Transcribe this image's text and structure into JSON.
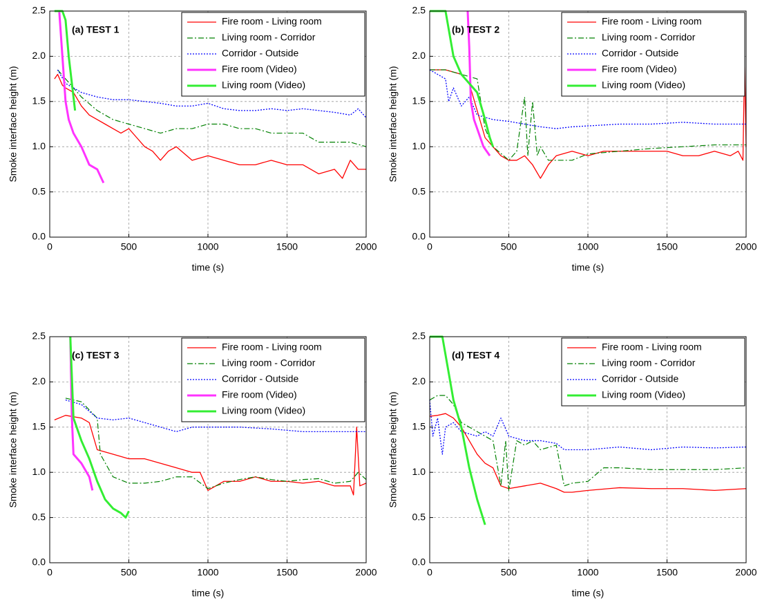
{
  "chart_data": [
    {
      "type": "line",
      "title": "(a) TEST 1",
      "xlabel": "time (s)",
      "ylabel": "Smoke interface height (m)",
      "xlim": [
        0,
        2000
      ],
      "ylim": [
        0,
        2.5
      ],
      "xticks": [
        0,
        500,
        1000,
        1500,
        2000
      ],
      "yticks": [
        {
          "value": 0,
          "label": "0.0"
        },
        0.5,
        {
          "value": 1,
          "label": "1.0"
        },
        1.5,
        {
          "value": 2,
          "label": "2.0"
        },
        2.5
      ],
      "grid": true,
      "legend": "upper right",
      "series": [
        {
          "name": "Fire room - Living room",
          "color": "#ff0000",
          "style": "solid",
          "width": 1.3,
          "x": [
            30,
            50,
            80,
            100,
            150,
            200,
            250,
            300,
            350,
            400,
            450,
            500,
            550,
            600,
            650,
            700,
            750,
            800,
            900,
            1000,
            1100,
            1200,
            1300,
            1400,
            1500,
            1600,
            1700,
            1800,
            1850,
            1900,
            1950,
            2000
          ],
          "values": [
            1.75,
            1.8,
            1.68,
            1.65,
            1.6,
            1.45,
            1.35,
            1.3,
            1.25,
            1.2,
            1.15,
            1.2,
            1.1,
            1.0,
            0.95,
            0.85,
            0.95,
            1.0,
            0.85,
            0.9,
            0.85,
            0.8,
            0.8,
            0.85,
            0.8,
            0.8,
            0.7,
            0.75,
            0.65,
            0.85,
            0.75,
            0.75
          ]
        },
        {
          "name": "Living room - Corridor",
          "color": "#008000",
          "style": "dashdot",
          "width": 1.2,
          "x": [
            50,
            100,
            150,
            200,
            300,
            400,
            500,
            600,
            700,
            800,
            900,
            1000,
            1100,
            1200,
            1300,
            1400,
            1500,
            1600,
            1700,
            1800,
            1900,
            2000
          ],
          "values": [
            1.85,
            1.75,
            1.65,
            1.55,
            1.4,
            1.3,
            1.25,
            1.2,
            1.15,
            1.2,
            1.2,
            1.25,
            1.25,
            1.2,
            1.2,
            1.15,
            1.15,
            1.15,
            1.05,
            1.05,
            1.05,
            1.0
          ]
        },
        {
          "name": "Corridor - Outside",
          "color": "#0000ff",
          "style": "dotted",
          "width": 1.3,
          "x": [
            50,
            100,
            200,
            300,
            400,
            500,
            600,
            700,
            800,
            900,
            1000,
            1100,
            1200,
            1300,
            1400,
            1500,
            1600,
            1700,
            1800,
            1900,
            1950,
            2000
          ],
          "values": [
            1.85,
            1.7,
            1.6,
            1.55,
            1.52,
            1.52,
            1.5,
            1.48,
            1.45,
            1.45,
            1.48,
            1.42,
            1.4,
            1.4,
            1.42,
            1.4,
            1.42,
            1.4,
            1.38,
            1.35,
            1.42,
            1.32
          ]
        },
        {
          "name": "Fire room (Video)",
          "color": "#ff33ff",
          "style": "solid",
          "width": 3,
          "x": [
            60,
            80,
            100,
            120,
            150,
            200,
            250,
            300,
            340
          ],
          "values": [
            2.5,
            2.0,
            1.5,
            1.3,
            1.15,
            1.0,
            0.8,
            0.75,
            0.6
          ]
        },
        {
          "name": "Living room (Video)",
          "color": "#33ee33",
          "style": "solid",
          "width": 3,
          "x": [
            30,
            80,
            100,
            120,
            140,
            160
          ],
          "values": [
            2.5,
            2.5,
            2.4,
            2.0,
            1.7,
            1.4
          ]
        }
      ]
    },
    {
      "type": "line",
      "title": "(b) TEST 2",
      "xlabel": "time (s)",
      "ylabel": "Smoke interface height (m)",
      "xlim": [
        0,
        2000
      ],
      "ylim": [
        0,
        2.5
      ],
      "xticks": [
        0,
        500,
        1000,
        1500,
        2000
      ],
      "yticks": [
        {
          "value": 0,
          "label": "0.0"
        },
        0.5,
        {
          "value": 1,
          "label": "1.0"
        },
        1.5,
        {
          "value": 2,
          "label": "2.0"
        },
        2.5
      ],
      "grid": true,
      "legend": "upper right",
      "series": [
        {
          "name": "Fire room - Living room",
          "color": "#ff0000",
          "style": "solid",
          "width": 1.3,
          "x": [
            0,
            100,
            200,
            250,
            300,
            350,
            400,
            450,
            500,
            550,
            600,
            650,
            700,
            750,
            800,
            900,
            1000,
            1100,
            1200,
            1300,
            1400,
            1500,
            1600,
            1700,
            1800,
            1900,
            1950,
            1980,
            1990,
            2000
          ],
          "values": [
            1.85,
            1.85,
            1.8,
            1.7,
            1.4,
            1.1,
            1.0,
            0.9,
            0.85,
            0.85,
            0.9,
            0.8,
            0.65,
            0.8,
            0.9,
            0.95,
            0.9,
            0.95,
            0.95,
            0.95,
            0.95,
            0.95,
            0.9,
            0.9,
            0.95,
            0.9,
            0.95,
            0.85,
            1.95,
            1.0
          ]
        },
        {
          "name": "Living room - Corridor",
          "color": "#008000",
          "style": "dashdot",
          "width": 1.2,
          "x": [
            0,
            100,
            200,
            300,
            350,
            400,
            500,
            550,
            600,
            620,
            650,
            680,
            700,
            750,
            800,
            900,
            1000,
            1200,
            1400,
            1600,
            1800,
            2000
          ],
          "values": [
            1.85,
            1.85,
            1.8,
            1.75,
            1.2,
            1.0,
            0.85,
            0.95,
            1.55,
            0.9,
            1.5,
            0.9,
            1.0,
            0.85,
            0.85,
            0.85,
            0.92,
            0.95,
            0.98,
            1.0,
            1.02,
            1.02
          ]
        },
        {
          "name": "Corridor - Outside",
          "color": "#0000ff",
          "style": "dotted",
          "width": 1.3,
          "x": [
            0,
            100,
            120,
            150,
            200,
            250,
            300,
            400,
            500,
            600,
            700,
            800,
            900,
            1000,
            1200,
            1400,
            1600,
            1800,
            2000
          ],
          "values": [
            1.85,
            1.75,
            1.5,
            1.65,
            1.45,
            1.55,
            1.35,
            1.3,
            1.28,
            1.25,
            1.22,
            1.2,
            1.22,
            1.23,
            1.25,
            1.25,
            1.27,
            1.25,
            1.25
          ]
        },
        {
          "name": "Fire room (Video)",
          "color": "#ff33ff",
          "style": "solid",
          "width": 3,
          "x": [
            240,
            250,
            260,
            280,
            300,
            320,
            340,
            360,
            380
          ],
          "values": [
            2.5,
            2.1,
            1.5,
            1.3,
            1.2,
            1.1,
            1.0,
            0.95,
            0.9
          ]
        },
        {
          "name": "Living room (Video)",
          "color": "#33ee33",
          "style": "solid",
          "width": 3,
          "x": [
            0,
            100,
            120,
            150,
            200,
            250,
            300,
            350,
            380,
            400
          ],
          "values": [
            2.5,
            2.5,
            2.3,
            2.0,
            1.8,
            1.7,
            1.6,
            1.3,
            1.1,
            1.0
          ]
        }
      ]
    },
    {
      "type": "line",
      "title": "(c) TEST 3",
      "xlabel": "time (s)",
      "ylabel": "Smoke interface height (m)",
      "xlim": [
        0,
        2000
      ],
      "ylim": [
        0,
        2.5
      ],
      "xticks": [
        0,
        500,
        1000,
        1500,
        2000
      ],
      "yticks": [
        {
          "value": 0,
          "label": "0.0"
        },
        0.5,
        {
          "value": 1,
          "label": "1.0"
        },
        1.5,
        {
          "value": 2,
          "label": "2.0"
        },
        2.5
      ],
      "grid": true,
      "legend": "upper right",
      "series": [
        {
          "name": "Fire room - Living room",
          "color": "#ff0000",
          "style": "solid",
          "width": 1.3,
          "x": [
            30,
            100,
            200,
            250,
            300,
            400,
            500,
            600,
            700,
            800,
            900,
            950,
            1000,
            1100,
            1200,
            1300,
            1400,
            1500,
            1600,
            1700,
            1800,
            1900,
            1920,
            1940,
            1960,
            2000
          ],
          "values": [
            1.58,
            1.63,
            1.6,
            1.55,
            1.25,
            1.2,
            1.15,
            1.15,
            1.1,
            1.05,
            1.0,
            1.0,
            0.8,
            0.9,
            0.9,
            0.95,
            0.9,
            0.9,
            0.88,
            0.9,
            0.85,
            0.85,
            0.75,
            1.5,
            0.85,
            0.88
          ]
        },
        {
          "name": "Living room - Corridor",
          "color": "#008000",
          "style": "dashdot",
          "width": 1.2,
          "x": [
            100,
            200,
            300,
            320,
            400,
            500,
            600,
            700,
            800,
            900,
            1000,
            1100,
            1200,
            1300,
            1400,
            1500,
            1600,
            1700,
            1800,
            1900,
            1950,
            2000
          ],
          "values": [
            1.82,
            1.78,
            1.6,
            1.2,
            0.95,
            0.88,
            0.88,
            0.9,
            0.95,
            0.95,
            0.82,
            0.88,
            0.92,
            0.95,
            0.92,
            0.9,
            0.92,
            0.93,
            0.88,
            0.9,
            1.0,
            0.92
          ]
        },
        {
          "name": "Corridor - Outside",
          "color": "#0000ff",
          "style": "dotted",
          "width": 1.3,
          "x": [
            100,
            200,
            300,
            400,
            500,
            600,
            700,
            800,
            900,
            1000,
            1200,
            1400,
            1600,
            1800,
            2000
          ],
          "values": [
            1.8,
            1.75,
            1.6,
            1.58,
            1.6,
            1.55,
            1.5,
            1.45,
            1.5,
            1.5,
            1.5,
            1.48,
            1.45,
            1.45,
            1.45
          ]
        },
        {
          "name": "Fire room (Video)",
          "color": "#ff33ff",
          "style": "solid",
          "width": 3,
          "x": [
            130,
            140,
            150,
            200,
            250,
            270
          ],
          "values": [
            2.5,
            1.6,
            1.2,
            1.1,
            0.95,
            0.8
          ]
        },
        {
          "name": "Living room (Video)",
          "color": "#33ee33",
          "style": "solid",
          "width": 3,
          "x": [
            130,
            150,
            200,
            250,
            300,
            350,
            400,
            450,
            480,
            500
          ],
          "values": [
            2.5,
            1.6,
            1.35,
            1.15,
            0.9,
            0.7,
            0.6,
            0.55,
            0.5,
            0.57
          ]
        }
      ]
    },
    {
      "type": "line",
      "title": "(d) TEST 4",
      "xlabel": "time (s)",
      "ylabel": "Smoke interface height (m)",
      "xlim": [
        0,
        2000
      ],
      "ylim": [
        0,
        2.5
      ],
      "xticks": [
        0,
        500,
        1000,
        1500,
        2000
      ],
      "yticks": [
        {
          "value": 0,
          "label": "0.0"
        },
        0.5,
        {
          "value": 1,
          "label": "1.0"
        },
        1.5,
        {
          "value": 2,
          "label": "2.0"
        },
        2.5
      ],
      "grid": true,
      "legend": "upper right",
      "series": [
        {
          "name": "Fire room - Living room",
          "color": "#ff0000",
          "style": "solid",
          "width": 1.3,
          "x": [
            0,
            50,
            100,
            150,
            200,
            250,
            300,
            350,
            400,
            450,
            500,
            600,
            700,
            800,
            850,
            900,
            1000,
            1200,
            1400,
            1600,
            1800,
            2000
          ],
          "values": [
            1.62,
            1.63,
            1.65,
            1.6,
            1.5,
            1.35,
            1.2,
            1.1,
            1.05,
            0.85,
            0.82,
            0.85,
            0.88,
            0.82,
            0.78,
            0.78,
            0.8,
            0.83,
            0.82,
            0.82,
            0.8,
            0.82
          ]
        },
        {
          "name": "Living room - Corridor",
          "color": "#008000",
          "style": "dashdot",
          "width": 1.2,
          "x": [
            0,
            50,
            100,
            150,
            200,
            300,
            400,
            450,
            480,
            500,
            550,
            600,
            650,
            700,
            800,
            850,
            900,
            1000,
            1100,
            1200,
            1400,
            1600,
            1800,
            2000
          ],
          "values": [
            1.8,
            1.85,
            1.85,
            1.75,
            1.55,
            1.45,
            1.35,
            0.85,
            1.35,
            0.8,
            1.35,
            1.3,
            1.35,
            1.25,
            1.3,
            0.85,
            0.88,
            0.9,
            1.05,
            1.05,
            1.03,
            1.03,
            1.03,
            1.05
          ]
        },
        {
          "name": "Corridor - Outside",
          "color": "#0000ff",
          "style": "dotted",
          "width": 1.3,
          "x": [
            0,
            20,
            50,
            80,
            100,
            150,
            200,
            300,
            350,
            400,
            450,
            500,
            600,
            700,
            800,
            850,
            900,
            1000,
            1200,
            1400,
            1600,
            1800,
            2000
          ],
          "values": [
            1.8,
            1.4,
            1.6,
            1.2,
            1.5,
            1.55,
            1.45,
            1.4,
            1.45,
            1.4,
            1.6,
            1.4,
            1.35,
            1.35,
            1.32,
            1.25,
            1.25,
            1.25,
            1.28,
            1.25,
            1.28,
            1.27,
            1.28
          ]
        },
        {
          "name": "Living room (Video)",
          "color": "#33ee33",
          "style": "solid",
          "width": 3,
          "x": [
            0,
            80,
            100,
            150,
            200,
            250,
            300,
            350
          ],
          "values": [
            2.5,
            2.5,
            2.3,
            1.8,
            1.5,
            1.05,
            0.7,
            0.42
          ]
        }
      ]
    }
  ]
}
